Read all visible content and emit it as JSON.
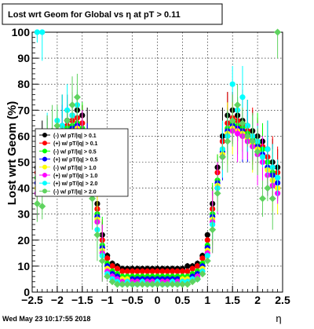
{
  "title": "Lost wrt Geom for Global vs   η at pT > 0.11",
  "xlabel": "η",
  "ylabel": "Lost wrt Geom (%)",
  "timestamp": "Wed May 23 10:17:55 2018",
  "legend": [
    {
      "label": "(-) w/ pT/|q| > 0.1",
      "color": "#000000"
    },
    {
      "label": "(+) w/ pT/|q| > 0.1",
      "color": "#ff0000"
    },
    {
      "label": "(-) w/ pT/|q| > 0.5",
      "color": "#00ff00"
    },
    {
      "label": "(+) w/ pT/|q| > 0.5",
      "color": "#0000ff"
    },
    {
      "label": "(-) w/ pT/|q| > 1.0",
      "color": "#ffff00"
    },
    {
      "label": "(+) w/ pT/|q| > 1.0",
      "color": "#ff00ff"
    },
    {
      "label": "(+) w/ pT/|q| > 2.0",
      "color": "#00ffff"
    },
    {
      "label": "(-) w/ pT/|q| > 2.0",
      "color": "#5fd35f"
    }
  ],
  "chart_data": {
    "type": "scatter",
    "title": "Lost wrt Geom for Global vs   η at pT > 0.11",
    "xlabel": "η",
    "ylabel": "Lost wrt Geom (%)",
    "xlim": [
      -2.5,
      2.5
    ],
    "ylim": [
      0,
      100
    ],
    "grid": true,
    "legend_position": "left",
    "x_ticks": [
      -2.5,
      -2,
      -1.5,
      -1,
      -0.5,
      0,
      0.5,
      1,
      1.5,
      2,
      2.5
    ],
    "x_tick_labels": [
      "−2.5",
      "−2",
      "−1.5",
      "−1",
      "−0.5",
      "0",
      "0.5",
      "1",
      "1.5",
      "2",
      "2.5"
    ],
    "y_ticks": [
      0,
      10,
      20,
      30,
      40,
      50,
      60,
      70,
      80,
      90,
      100
    ],
    "y_tick_labels": [
      "0",
      "10",
      "20",
      "30",
      "40",
      "50",
      "60",
      "70",
      "80",
      "90",
      "100"
    ],
    "x": [
      -2.4,
      -2.3,
      -2.2,
      -2.1,
      -2.0,
      -1.9,
      -1.8,
      -1.7,
      -1.6,
      -1.5,
      -1.4,
      -1.3,
      -1.2,
      -1.1,
      -1.0,
      -0.9,
      -0.8,
      -0.7,
      -0.6,
      -0.5,
      -0.4,
      -0.3,
      -0.2,
      -0.1,
      0.0,
      0.1,
      0.2,
      0.3,
      0.4,
      0.5,
      0.6,
      0.7,
      0.8,
      0.9,
      1.0,
      1.1,
      1.2,
      1.3,
      1.4,
      1.5,
      1.6,
      1.7,
      1.8,
      1.9,
      2.0,
      2.1,
      2.2,
      2.3,
      2.4
    ],
    "series": [
      {
        "name": "(-) w/ pT/|q| > 0.1",
        "color": "#000000",
        "values": [
          48,
          55,
          58,
          60,
          62,
          64,
          66,
          68,
          70,
          68,
          60,
          48,
          34,
          22,
          14,
          11,
          10,
          9,
          9,
          9,
          9,
          9,
          9,
          9,
          9,
          9,
          9,
          9,
          9,
          9,
          10,
          10,
          11,
          14,
          22,
          34,
          48,
          60,
          68,
          70,
          68,
          66,
          64,
          62,
          60,
          58,
          55,
          50,
          48
        ]
      },
      {
        "name": "(+) w/ pT/|q| > 0.1",
        "color": "#ff0000",
        "values": [
          46,
          52,
          56,
          58,
          60,
          62,
          64,
          66,
          67,
          65,
          58,
          46,
          32,
          20,
          13,
          10,
          9,
          8,
          8,
          8,
          8,
          8,
          8,
          8,
          8,
          8,
          8,
          8,
          8,
          8,
          8,
          9,
          10,
          13,
          20,
          32,
          46,
          58,
          65,
          67,
          66,
          64,
          62,
          60,
          58,
          56,
          52,
          48,
          46
        ]
      },
      {
        "name": "(-) w/ pT/|q| > 0.5",
        "color": "#00ff00",
        "values": [
          44,
          50,
          55,
          57,
          59,
          61,
          63,
          64,
          65,
          63,
          55,
          43,
          30,
          18,
          11,
          8,
          7,
          6,
          6,
          6,
          6,
          6,
          6,
          6,
          6,
          6,
          6,
          6,
          6,
          6,
          6,
          7,
          8,
          11,
          18,
          30,
          43,
          55,
          63,
          65,
          64,
          63,
          61,
          59,
          57,
          55,
          50,
          46,
          44
        ]
      },
      {
        "name": "(+) w/ pT/|q| > 0.5",
        "color": "#0000ff",
        "values": [
          42,
          48,
          53,
          56,
          58,
          60,
          62,
          63,
          64,
          62,
          54,
          42,
          29,
          17,
          10,
          7,
          6,
          5,
          5,
          5,
          5,
          5,
          5,
          5,
          5,
          5,
          5,
          5,
          5,
          5,
          5,
          6,
          7,
          10,
          17,
          29,
          42,
          54,
          62,
          64,
          63,
          62,
          60,
          58,
          56,
          53,
          48,
          45,
          42
        ]
      },
      {
        "name": "(-) w/ pT/|q| > 1.0",
        "color": "#ffff00",
        "values": [
          40,
          47,
          52,
          55,
          57,
          59,
          61,
          62,
          63,
          61,
          53,
          41,
          28,
          16,
          9,
          6,
          5,
          5,
          5,
          4,
          4,
          4,
          4,
          4,
          4,
          4,
          4,
          4,
          4,
          5,
          5,
          5,
          6,
          9,
          16,
          28,
          41,
          53,
          61,
          63,
          62,
          61,
          59,
          57,
          55,
          52,
          47,
          43,
          40
        ]
      },
      {
        "name": "(+) w/ pT/|q| > 1.0",
        "color": "#ff00ff",
        "values": [
          38,
          45,
          50,
          53,
          56,
          58,
          60,
          61,
          62,
          60,
          52,
          40,
          27,
          15,
          8,
          6,
          5,
          4,
          4,
          4,
          4,
          4,
          4,
          4,
          4,
          4,
          4,
          4,
          4,
          4,
          4,
          5,
          6,
          8,
          15,
          27,
          40,
          52,
          60,
          62,
          61,
          60,
          58,
          56,
          53,
          50,
          45,
          41,
          38
        ]
      },
      {
        "name": "(+) w/ pT/|q| > 2.0",
        "color": "#00ffff",
        "values": [
          100,
          100,
          60,
          62,
          66,
          64,
          70,
          68,
          72,
          58,
          50,
          38,
          24,
          14,
          7,
          5,
          4,
          3,
          4,
          3,
          3,
          4,
          3,
          3,
          4,
          3,
          3,
          4,
          3,
          4,
          4,
          5,
          5,
          8,
          14,
          26,
          40,
          55,
          60,
          80,
          70,
          75,
          64,
          60,
          58,
          52,
          55,
          48,
          44
        ]
      },
      {
        "name": "(-) w/ pT/|q| > 2.0",
        "color": "#5fd35f",
        "values": [
          34,
          33,
          56,
          62,
          64,
          58,
          66,
          72,
          75,
          56,
          48,
          36,
          22,
          12,
          6,
          4,
          3,
          3,
          3,
          3,
          3,
          3,
          3,
          3,
          3,
          3,
          3,
          3,
          3,
          3,
          3,
          4,
          5,
          7,
          12,
          24,
          38,
          52,
          58,
          66,
          72,
          65,
          60,
          58,
          54,
          36,
          40,
          36,
          100
        ]
      }
    ]
  }
}
